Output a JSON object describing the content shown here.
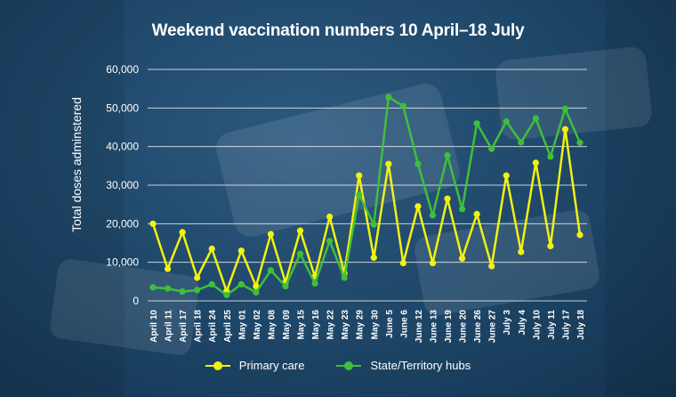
{
  "chart_data": {
    "type": "line",
    "title": "Weekend vaccination numbers 10 April–18 July",
    "ylabel": "Total doses adminstered",
    "xlabel": "",
    "ylim": [
      0,
      60000
    ],
    "yticks": [
      0,
      10000,
      20000,
      30000,
      40000,
      50000,
      60000
    ],
    "ytick_labels": [
      "0",
      "10,000",
      "20,000",
      "30,000",
      "40,000",
      "50,000",
      "60,000"
    ],
    "grid": "horizontal",
    "legend_placement": "bottom-center",
    "categories": [
      "April 10",
      "April 11",
      "April 17",
      "April 18",
      "April 24",
      "April 25",
      "May 01",
      "May 02",
      "May 08",
      "May 09",
      "May 15",
      "May 16",
      "May 22",
      "May 23",
      "May 29",
      "May 30",
      "June 5",
      "June 6",
      "June 12",
      "June 13",
      "June 19",
      "June 20",
      "June 26",
      "June 27",
      "July 3",
      "July 4",
      "July 10",
      "July 11",
      "July 17",
      "July 18"
    ],
    "series": [
      {
        "name": "Primary care",
        "color": "#f2f20f",
        "values": [
          20000,
          8300,
          17800,
          6000,
          13500,
          2500,
          13000,
          3800,
          17300,
          4800,
          18200,
          6300,
          21800,
          7200,
          32500,
          11200,
          35500,
          9800,
          24500,
          9800,
          26500,
          11000,
          22500,
          9000,
          32500,
          12700,
          35800,
          14200,
          44500,
          17100
        ]
      },
      {
        "name": "State/Territory hubs",
        "color": "#3fbf3b",
        "values": [
          3500,
          3200,
          2400,
          2800,
          4300,
          1500,
          4300,
          2200,
          7900,
          3800,
          12200,
          4500,
          15500,
          6000,
          27500,
          19800,
          52800,
          50500,
          35500,
          22200,
          37700,
          23800,
          46000,
          39400,
          46500,
          41100,
          47300,
          37400,
          49800,
          41000
        ]
      }
    ]
  }
}
